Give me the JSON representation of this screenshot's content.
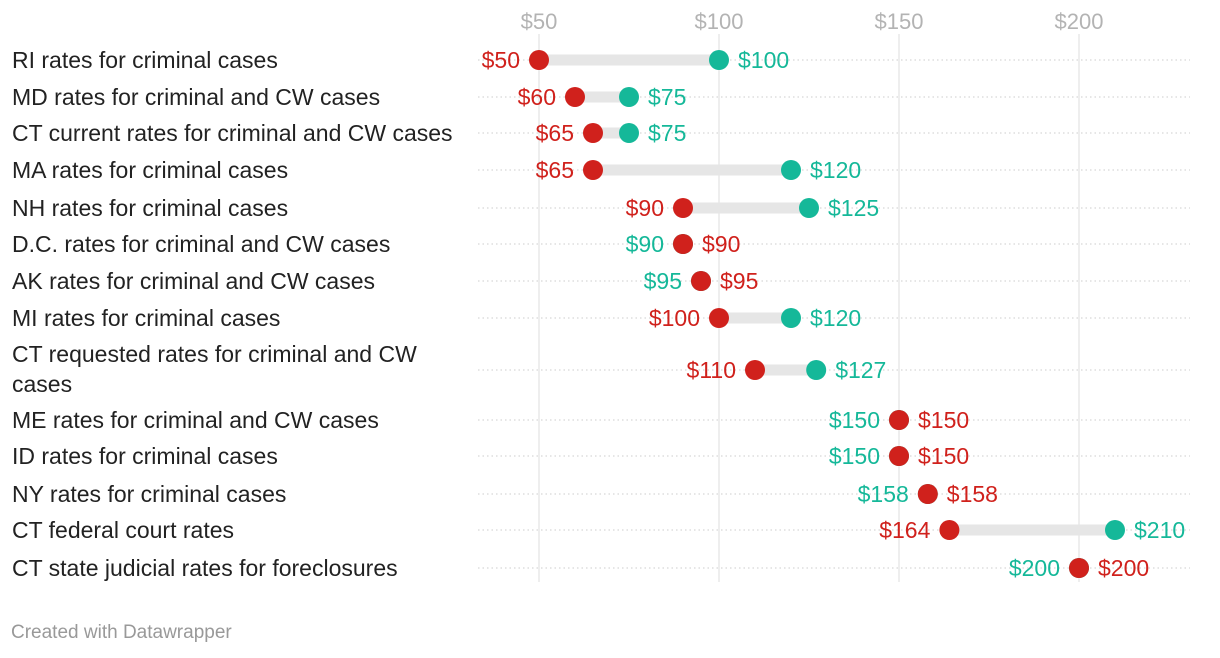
{
  "chart_data": {
    "type": "range-dot",
    "title": "",
    "xlabel": "",
    "ylabel": "",
    "xlim": [
      32.5,
      230
    ],
    "x_ticks": [
      50,
      100,
      150,
      200
    ],
    "x_tick_labels": [
      "$50",
      "$100",
      "$150",
      "$200"
    ],
    "colors": {
      "low": "#d0211c",
      "high": "#15b899",
      "range_bar": "#e6e6e6",
      "gridline": "#dddddd",
      "row_dots": "#d6d6d6"
    },
    "series": [
      {
        "name": "low",
        "color": "#d0211c"
      },
      {
        "name": "high",
        "color": "#15b899"
      }
    ],
    "rows": [
      {
        "category": "RI rates for criminal cases",
        "low": 50,
        "high": 100,
        "low_label": "$50",
        "high_label": "$100"
      },
      {
        "category": "MD rates for criminal and CW cases",
        "low": 60,
        "high": 75,
        "low_label": "$60",
        "high_label": "$75"
      },
      {
        "category": "CT current rates for criminal and CW cases",
        "low": 65,
        "high": 75,
        "low_label": "$65",
        "high_label": "$75"
      },
      {
        "category": "MA rates for criminal cases",
        "low": 65,
        "high": 120,
        "low_label": "$65",
        "high_label": "$120"
      },
      {
        "category": "NH rates for criminal cases",
        "low": 90,
        "high": 125,
        "low_label": "$90",
        "high_label": "$125"
      },
      {
        "category": "D.C. rates for criminal and CW cases",
        "low": 90,
        "high": 90,
        "low_label": "$90",
        "high_label": "$90"
      },
      {
        "category": "AK rates for criminal and CW cases",
        "low": 95,
        "high": 95,
        "low_label": "$95",
        "high_label": "$95"
      },
      {
        "category": "MI rates for criminal cases",
        "low": 100,
        "high": 120,
        "low_label": "$100",
        "high_label": "$120"
      },
      {
        "category": [
          "CT requested rates for criminal and CW",
          "cases"
        ],
        "low": 110,
        "high": 127,
        "low_label": "$110",
        "high_label": "$127"
      },
      {
        "category": "ME rates for criminal and CW cases",
        "low": 150,
        "high": 150,
        "low_label": "$150",
        "high_label": "$150"
      },
      {
        "category": "ID rates for criminal cases",
        "low": 150,
        "high": 150,
        "low_label": "$150",
        "high_label": "$150"
      },
      {
        "category": "NY rates for criminal cases",
        "low": 158,
        "high": 158,
        "low_label": "$158",
        "high_label": "$158"
      },
      {
        "category": "CT federal court rates",
        "low": 164,
        "high": 210,
        "low_label": "$164",
        "high_label": "$210"
      },
      {
        "category": "CT state judicial rates for foreclosures",
        "low": 200,
        "high": 200,
        "low_label": "$200",
        "high_label": "$200"
      }
    ]
  },
  "footer": {
    "credit": "Created with Datawrapper"
  }
}
